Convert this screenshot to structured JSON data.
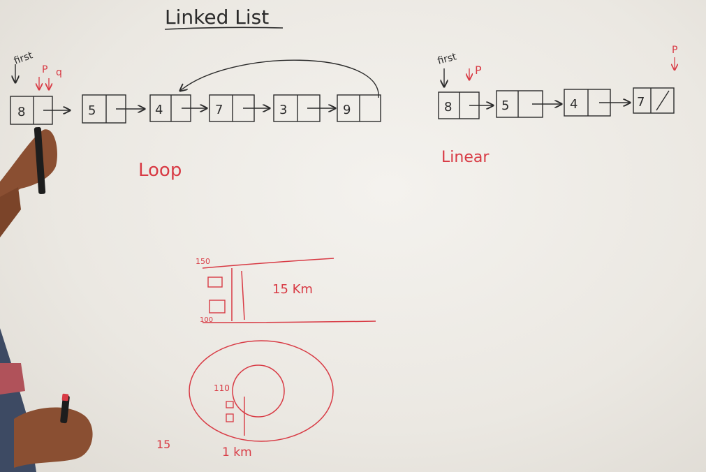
{
  "title": "Linked List",
  "loop_list": {
    "head_label": "first",
    "pointer_labels": [
      "P",
      "q"
    ],
    "nodes": [
      "8",
      "5",
      "4",
      "7",
      "3",
      "9"
    ],
    "caption": "Loop"
  },
  "linear_list": {
    "head_label": "first",
    "pointer_label": "P",
    "stray_pointer_label": "P",
    "nodes": [
      "8",
      "5",
      "4",
      "7"
    ],
    "caption": "Linear"
  },
  "road_diagram": {
    "top_value": "150",
    "bottom_value": "100",
    "distance_label": "15 Km"
  },
  "track_diagram": {
    "inner_value": "110",
    "laps_label": "15",
    "distance_label": "1 km"
  },
  "colors": {
    "board": "#ece9e3",
    "black_ink": "#2b2b2b",
    "red_ink": "#d83a44",
    "skin": "#8a4f32",
    "shirt": "#3d4a63"
  }
}
